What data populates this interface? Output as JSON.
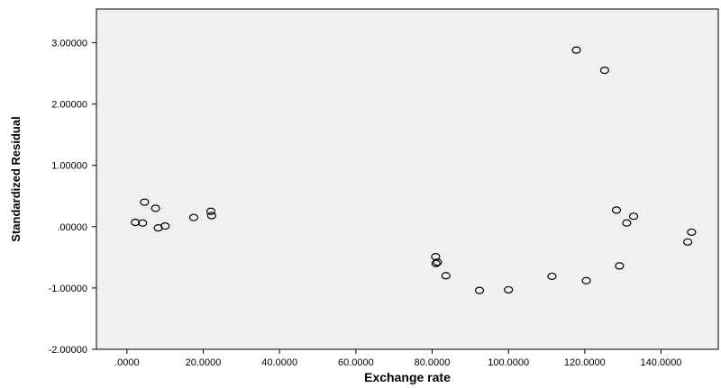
{
  "chart_data": {
    "type": "scatter",
    "title": "",
    "xlabel": "Exchange rate",
    "ylabel": "Standardized Residual",
    "xlim": [
      -8,
      155
    ],
    "ylim": [
      -2.0,
      3.55
    ],
    "x_ticks": [
      0,
      20,
      40,
      60,
      80,
      100,
      120,
      140
    ],
    "x_tick_labels": [
      ".0000",
      "20.0000",
      "40.0000",
      "60.0000",
      "80.0000",
      "100.0000",
      "120.0000",
      "140.0000"
    ],
    "y_ticks": [
      -2,
      -1,
      0,
      1,
      2,
      3
    ],
    "y_tick_labels": [
      "-2.00000",
      "-1.00000",
      ".00000",
      "1.00000",
      "2.00000",
      "3.00000"
    ],
    "grid": false,
    "plot_background": "#f0f0f0",
    "marker_color": "#000000",
    "points": [
      {
        "x": 2.2,
        "y": 0.07
      },
      {
        "x": 4.1,
        "y": 0.06
      },
      {
        "x": 4.6,
        "y": 0.4
      },
      {
        "x": 7.5,
        "y": 0.3
      },
      {
        "x": 8.2,
        "y": -0.02
      },
      {
        "x": 10.0,
        "y": 0.01
      },
      {
        "x": 17.5,
        "y": 0.15
      },
      {
        "x": 22.0,
        "y": 0.25
      },
      {
        "x": 22.2,
        "y": 0.18
      },
      {
        "x": 80.9,
        "y": -0.49
      },
      {
        "x": 81.0,
        "y": -0.6
      },
      {
        "x": 81.4,
        "y": -0.58
      },
      {
        "x": 83.6,
        "y": -0.8
      },
      {
        "x": 92.4,
        "y": -1.04
      },
      {
        "x": 100.0,
        "y": -1.03
      },
      {
        "x": 111.4,
        "y": -0.81
      },
      {
        "x": 117.8,
        "y": 2.88
      },
      {
        "x": 120.4,
        "y": -0.88
      },
      {
        "x": 125.2,
        "y": 2.55
      },
      {
        "x": 128.3,
        "y": 0.27
      },
      {
        "x": 129.1,
        "y": -0.64
      },
      {
        "x": 131.0,
        "y": 0.06
      },
      {
        "x": 132.8,
        "y": 0.17
      },
      {
        "x": 147.0,
        "y": -0.25
      },
      {
        "x": 148.0,
        "y": -0.09
      }
    ]
  }
}
